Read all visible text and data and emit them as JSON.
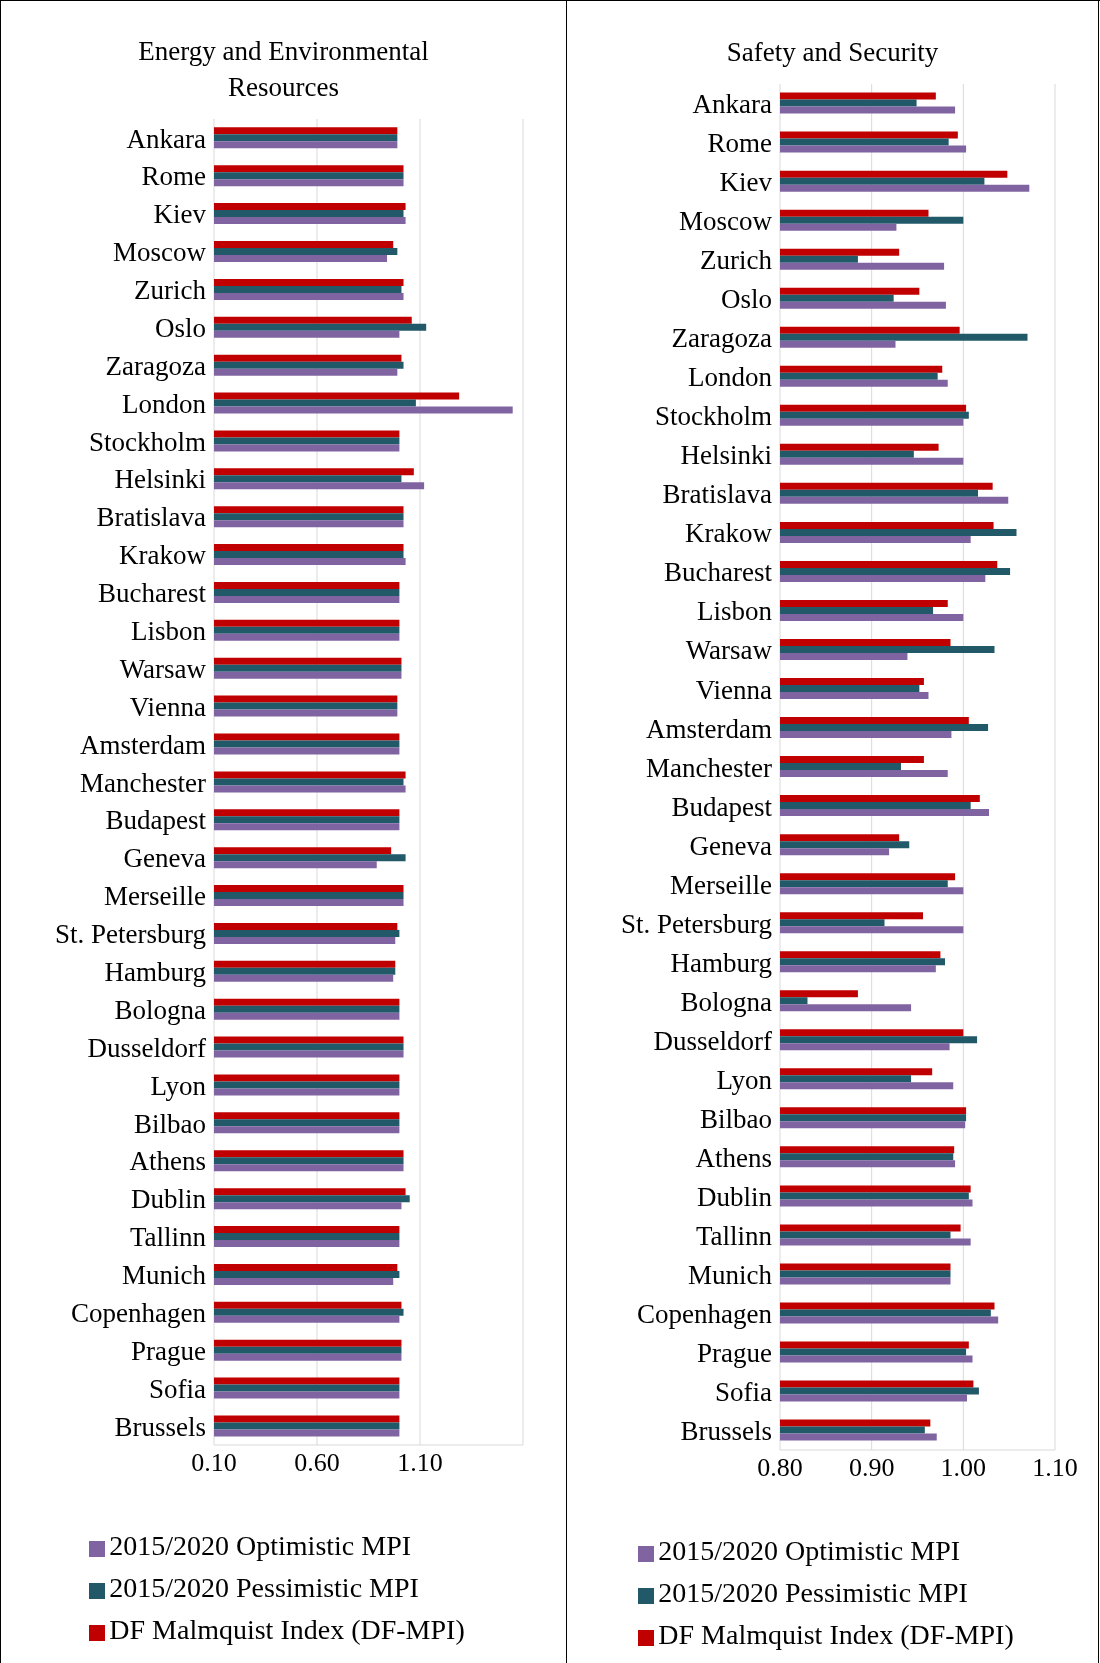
{
  "chart_data": [
    {
      "type": "bar",
      "orientation": "horizontal",
      "title": "Energy and Environmental Resources",
      "categories": [
        "Ankara",
        "Rome",
        "Kiev",
        "Moscow",
        "Zurich",
        "Oslo",
        "Zaragoza",
        "London",
        "Stockholm",
        "Helsinki",
        "Bratislava",
        "Krakow",
        "Bucharest",
        "Lisbon",
        "Warsaw",
        "Vienna",
        "Amsterdam",
        "Manchester",
        "Budapest",
        "Geneva",
        "Merseille",
        "St. Petersburg",
        "Hamburg",
        "Bologna",
        "Dusseldorf",
        "Lyon",
        "Bilbao",
        "Athens",
        "Dublin",
        "Tallinn",
        "Munich",
        "Copenhagen",
        "Prague",
        "Sofia",
        "Brussels"
      ],
      "series": [
        {
          "name": "DF Malmquist Index (DF-MPI)",
          "color": "#c00000",
          "values": [
            0.99,
            1.02,
            1.03,
            0.97,
            1.02,
            1.06,
            1.01,
            1.29,
            1.0,
            1.07,
            1.02,
            1.02,
            1.0,
            1.0,
            1.01,
            0.99,
            1.0,
            1.03,
            1.0,
            0.96,
            1.02,
            0.99,
            0.98,
            1.0,
            1.02,
            1.0,
            1.0,
            1.02,
            1.03,
            1.0,
            0.99,
            1.01,
            1.01,
            1.0,
            1.0
          ]
        },
        {
          "name": "2015/2020 Pessimistic MPI",
          "color": "#215968",
          "values": [
            0.99,
            1.02,
            1.02,
            0.99,
            1.01,
            1.13,
            1.02,
            1.08,
            1.0,
            1.01,
            1.02,
            1.02,
            1.0,
            1.0,
            1.01,
            0.99,
            1.0,
            1.02,
            1.0,
            1.03,
            1.02,
            1.0,
            0.98,
            1.0,
            1.02,
            1.0,
            1.0,
            1.02,
            1.05,
            1.0,
            1.0,
            1.02,
            1.01,
            1.0,
            1.0
          ]
        },
        {
          "name": "2015/2020 Optimistic MPI",
          "color": "#8064a2",
          "values": [
            0.99,
            1.02,
            1.03,
            0.94,
            1.02,
            1.0,
            0.99,
            1.55,
            1.0,
            1.12,
            1.02,
            1.03,
            1.0,
            1.0,
            1.01,
            0.99,
            1.0,
            1.03,
            1.0,
            0.89,
            1.02,
            0.98,
            0.97,
            1.0,
            1.02,
            1.0,
            1.0,
            1.02,
            1.01,
            1.0,
            0.97,
            1.0,
            1.01,
            1.0,
            1.0
          ]
        }
      ],
      "xlim": [
        0.1,
        1.6
      ],
      "xticks": [
        {
          "value": 0.1,
          "label": "0.10"
        },
        {
          "value": 0.6,
          "label": "0.60"
        },
        {
          "value": 1.1,
          "label": "1.10"
        }
      ],
      "grid": "x",
      "legend": "bottom"
    },
    {
      "type": "bar",
      "orientation": "horizontal",
      "title": "Safety and Security",
      "categories": [
        "Ankara",
        "Rome",
        "Kiev",
        "Moscow",
        "Zurich",
        "Oslo",
        "Zaragoza",
        "London",
        "Stockholm",
        "Helsinki",
        "Bratislava",
        "Krakow",
        "Bucharest",
        "Lisbon",
        "Warsaw",
        "Vienna",
        "Amsterdam",
        "Manchester",
        "Budapest",
        "Geneva",
        "Merseille",
        "St. Petersburg",
        "Hamburg",
        "Bologna",
        "Dusseldorf",
        "Lyon",
        "Bilbao",
        "Athens",
        "Dublin",
        "Tallinn",
        "Munich",
        "Copenhagen",
        "Prague",
        "Sofia",
        "Brussels"
      ],
      "series": [
        {
          "name": "DF Malmquist Index (DF-MPI)",
          "color": "#c00000",
          "values": [
            0.97,
            0.994,
            1.048,
            0.962,
            0.93,
            0.952,
            0.996,
            0.977,
            1.003,
            0.973,
            1.032,
            1.033,
            1.037,
            0.983,
            0.986,
            0.957,
            1.006,
            0.957,
            1.018,
            0.93,
            0.991,
            0.956,
            0.975,
            0.885,
            1.0,
            0.966,
            1.003,
            0.99,
            1.008,
            0.997,
            0.986,
            1.034,
            1.006,
            1.011,
            0.964
          ]
        },
        {
          "name": "2015/2020 Pessimistic MPI",
          "color": "#215968",
          "values": [
            0.949,
            0.984,
            1.023,
            1.0,
            0.885,
            0.924,
            1.07,
            0.972,
            1.006,
            0.946,
            1.016,
            1.058,
            1.051,
            0.967,
            1.034,
            0.952,
            1.027,
            0.932,
            1.008,
            0.941,
            0.983,
            0.914,
            0.98,
            0.83,
            1.015,
            0.943,
            1.003,
            0.989,
            1.006,
            0.986,
            0.986,
            1.03,
            1.003,
            1.017,
            0.958
          ]
        },
        {
          "name": "2015/2020 Optimistic MPI",
          "color": "#8064a2",
          "values": [
            0.991,
            1.003,
            1.072,
            0.927,
            0.979,
            0.981,
            0.926,
            0.983,
            1.0,
            1.0,
            1.049,
            1.008,
            1.024,
            1.0,
            0.939,
            0.962,
            0.987,
            0.983,
            1.028,
            0.919,
            1.0,
            1.0,
            0.97,
            0.943,
            0.985,
            0.989,
            1.002,
            0.991,
            1.01,
            1.008,
            0.986,
            1.038,
            1.01,
            1.004,
            0.971
          ]
        }
      ],
      "xlim": [
        0.8,
        1.1
      ],
      "xticks": [
        {
          "value": 0.8,
          "label": "0.80"
        },
        {
          "value": 0.9,
          "label": "0.90"
        },
        {
          "value": 1.0,
          "label": "1.00"
        },
        {
          "value": 1.1,
          "label": "1.10"
        }
      ],
      "grid": "x",
      "legend": "bottom"
    }
  ]
}
